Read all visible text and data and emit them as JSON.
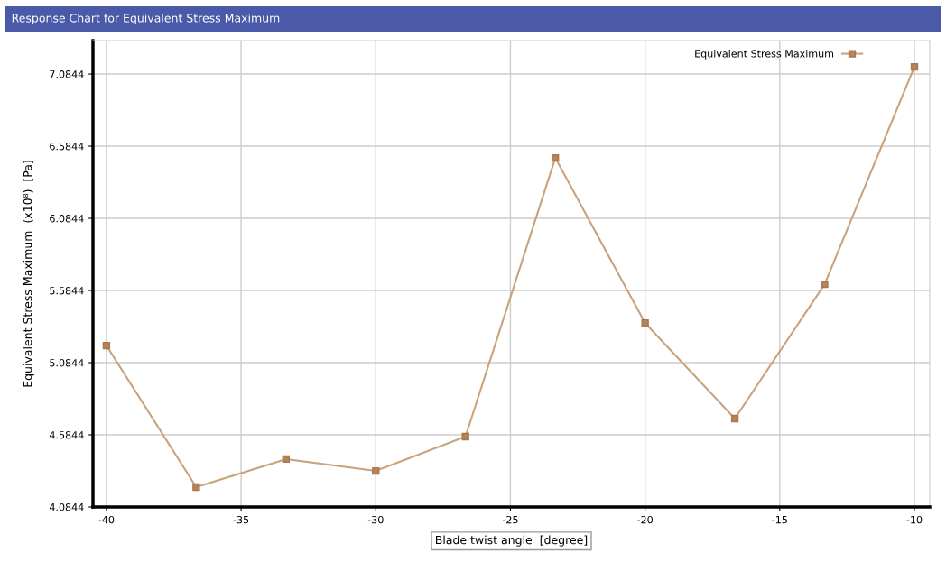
{
  "chart_data": {
    "type": "line",
    "title": "Response Chart for Equivalent Stress Maximum",
    "xlabel": "Blade twist angle  [degree]",
    "ylabel": "Equivalent Stress Maximum  (x10⁸)  [Pa]",
    "x": [
      -40,
      -36.667,
      -33.333,
      -30,
      -26.667,
      -23.333,
      -20,
      -16.667,
      -13.333,
      -10
    ],
    "series": [
      {
        "name": "Equivalent Stress Maximum",
        "color": "#c9a27c",
        "values": [
          5.203,
          4.222,
          4.416,
          4.334,
          4.572,
          6.503,
          5.359,
          4.697,
          5.628,
          7.134
        ]
      }
    ],
    "xlim": [
      -40.5,
      -9.43
    ],
    "xticks": [
      -40,
      -35,
      -30,
      -25,
      -20,
      -15,
      -10
    ],
    "ylim": [
      4.0844,
      7.316
    ],
    "yticks": [
      {
        "value": 4.0844,
        "label": "4.0844"
      },
      {
        "value": 4.5844,
        "label": "4.5844"
      },
      {
        "value": 5.0844,
        "label": "5.0844"
      },
      {
        "value": 5.5844,
        "label": "5.5844"
      },
      {
        "value": 6.0844,
        "label": "6.0844"
      },
      {
        "value": 6.5844,
        "label": "6.5844"
      },
      {
        "value": 7.0844,
        "label": "7.0844"
      }
    ],
    "grid": true,
    "legend": "top right",
    "marker": "square",
    "line_style": "solid"
  }
}
